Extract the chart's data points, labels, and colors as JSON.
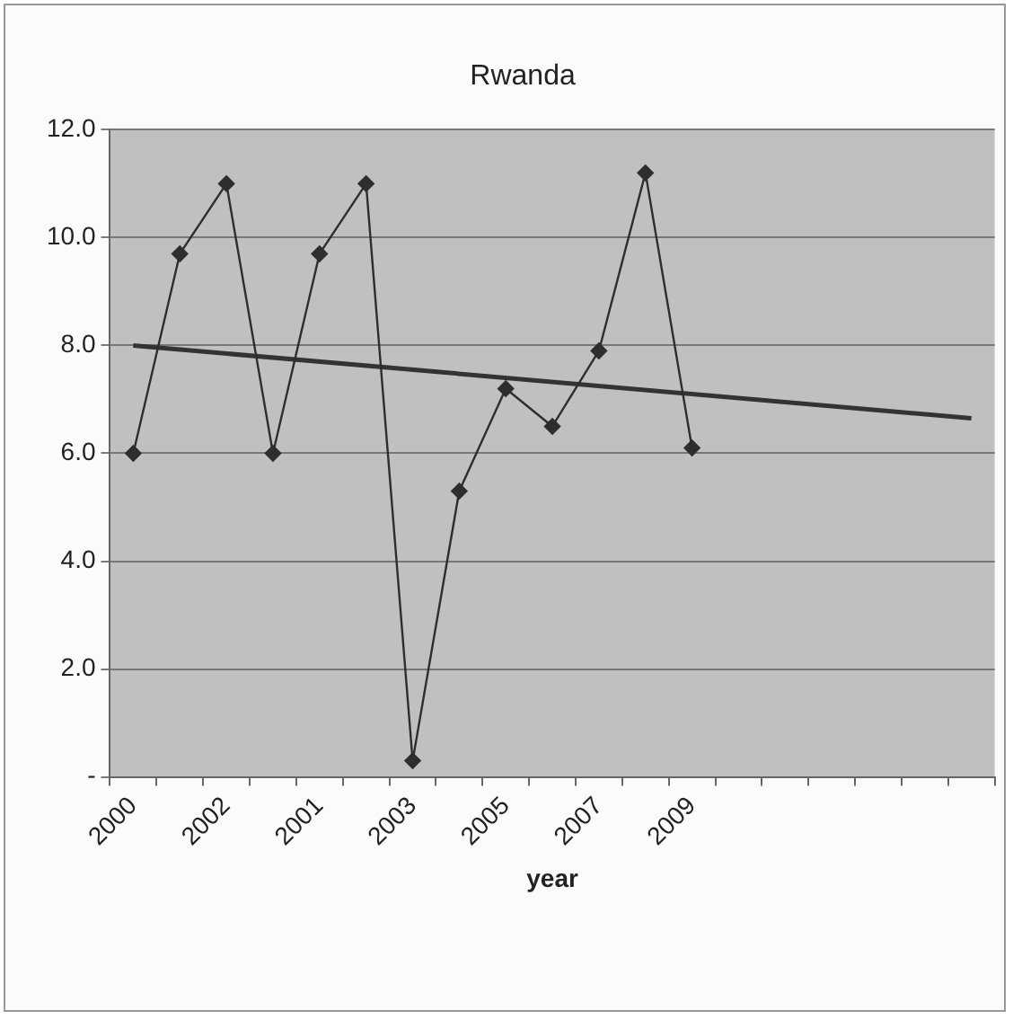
{
  "chart_data": {
    "type": "line",
    "title": "Rwanda",
    "xlabel": "year",
    "categories": [
      "2000",
      null,
      "2002",
      null,
      "2001",
      null,
      "2003",
      null,
      "2005",
      null,
      "2007",
      null,
      "2009",
      null,
      null,
      null,
      null,
      null,
      null
    ],
    "series": [
      {
        "color": "#2e2e2e",
        "marker": "diamond",
        "values": [
          6.0,
          9.7,
          11.0,
          6.0,
          9.7,
          11.0,
          0.3,
          5.3,
          7.2,
          6.5,
          7.9,
          11.2,
          6.1,
          null,
          null,
          null,
          null,
          null,
          null
        ]
      },
      {
        "color": "#333333",
        "marker": "none",
        "values": [
          8.0,
          null,
          null,
          null,
          null,
          null,
          null,
          null,
          null,
          null,
          null,
          null,
          null,
          null,
          null,
          null,
          null,
          null,
          6.65
        ]
      }
    ],
    "ylim": [
      0,
      12
    ],
    "yticks": [
      {
        "value": 0,
        "label": "-"
      },
      {
        "value": 2,
        "label": "2.0"
      },
      {
        "value": 4,
        "label": "4.0"
      },
      {
        "value": 6,
        "label": "6.0"
      },
      {
        "value": 8,
        "label": "8.0"
      },
      {
        "value": 10,
        "label": "10.0"
      },
      {
        "value": 12,
        "label": "12.0"
      }
    ],
    "grid": "y",
    "legend": false
  }
}
